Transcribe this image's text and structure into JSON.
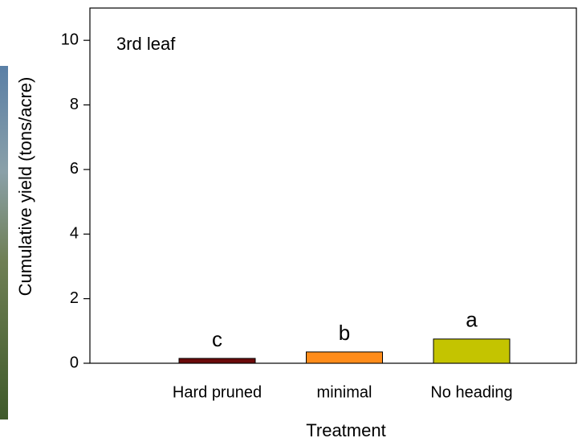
{
  "chart_data": {
    "type": "bar",
    "annotation": "3rd leaf",
    "y_label": "Cumulative yield (tons/acre)",
    "x_label": "Treatment",
    "categories": [
      "Hard pruned",
      "minimal",
      "No heading"
    ],
    "values": [
      0.15,
      0.35,
      0.75
    ],
    "colors": [
      "#6b0a0a",
      "#ff8c1a",
      "#c4c400"
    ],
    "letters": [
      "c",
      "b",
      "a"
    ],
    "ylim": [
      0,
      11
    ],
    "yticks": [
      0,
      2,
      4,
      6,
      8,
      10
    ]
  }
}
